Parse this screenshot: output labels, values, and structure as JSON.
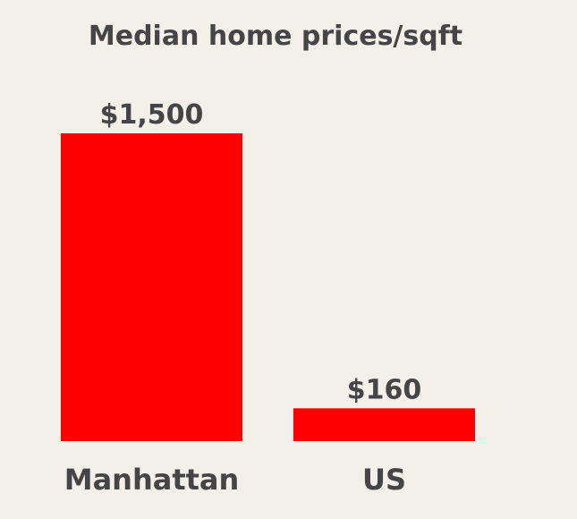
{
  "chart_data": {
    "type": "bar",
    "title": "Median home prices/sqft",
    "categories": [
      "Manhattan",
      "US"
    ],
    "values": [
      1500,
      160
    ],
    "value_labels": [
      "$1,500",
      "$160"
    ],
    "xlabel": "",
    "ylabel": "",
    "ylim": [
      0,
      1500
    ],
    "grid": false,
    "legend": "none",
    "bar_color": "#ff0000",
    "text_color": "#454545",
    "background_color": "#f3efe9"
  }
}
